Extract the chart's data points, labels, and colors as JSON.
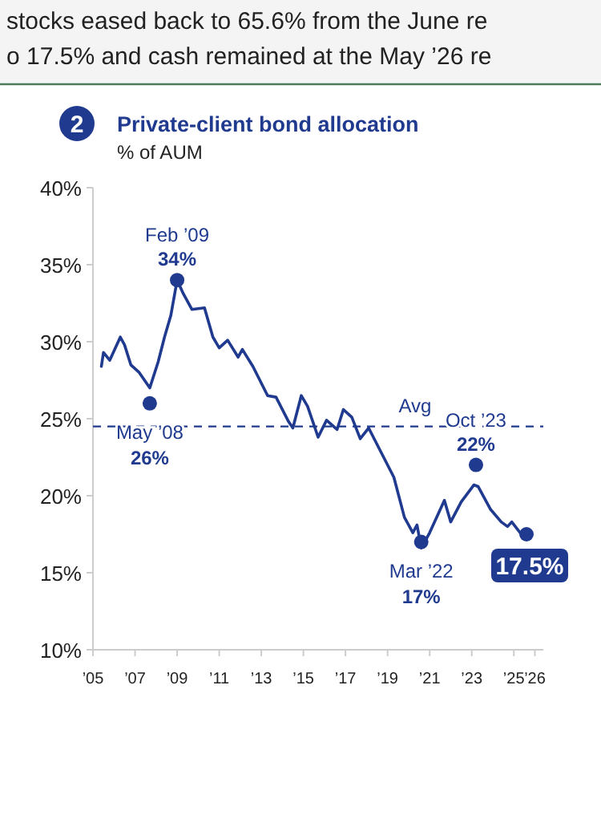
{
  "chart_data": {
    "type": "line",
    "title": "Private-client bond allocation",
    "subtitle": "% of AUM",
    "annotations": [
      "stocks eased back to 65.6% from the June re",
      "o 17.5% and cash remained at the May ’26 re",
      "2",
      {
        "text": "May ’08",
        "x": 2007.7,
        "y": 26
      },
      {
        "text": "Feb ’09",
        "x": 2009.0,
        "y": 34
      },
      {
        "text": "Mar ’22",
        "x": 2020.6,
        "y": 17
      },
      {
        "text": "Oct ’23",
        "x": 2023.2,
        "y": 22
      }
    ],
    "xlim": [
      2005,
      2026.4
    ],
    "xticks": [
      {
        "value": 2005,
        "label": "’05"
      },
      {
        "value": 2007,
        "label": "’07"
      },
      {
        "value": 2009,
        "label": "’09"
      },
      {
        "value": 2011,
        "label": "’11"
      },
      {
        "value": 2013,
        "label": "’13"
      },
      {
        "value": 2015,
        "label": "’15"
      },
      {
        "value": 2017,
        "label": "’17"
      },
      {
        "value": 2019,
        "label": "’19"
      },
      {
        "value": 2021,
        "label": "’21"
      },
      {
        "value": 2023,
        "label": "’23"
      },
      {
        "value": 2025,
        "label": "’25"
      },
      {
        "value": 2026,
        "label": "’26"
      }
    ],
    "ylim": [
      10,
      40
    ],
    "yticks": [
      {
        "value": 10,
        "label": "10%"
      },
      {
        "value": 15,
        "label": "15%"
      },
      {
        "value": 20,
        "label": "20%"
      },
      {
        "value": 25,
        "label": "25%"
      },
      {
        "value": 30,
        "label": "30%"
      },
      {
        "value": 35,
        "label": "35%"
      },
      {
        "value": 40,
        "label": "40%"
      }
    ],
    "ref_lines": [
      {
        "axis": "y",
        "value": 24.5,
        "label": "Avg",
        "color": "#1f3a8f",
        "line_style": "dashed"
      }
    ],
    "grid": false,
    "series": [
      {
        "color": "#1f3a8f",
        "x": [
          2005.4,
          2005.5,
          2005.8,
          2006.3,
          2006.5,
          2006.8,
          2007.2,
          2007.7,
          2008.1,
          2008.4,
          2008.7,
          2009.0,
          2009.3,
          2009.7,
          2010.3,
          2010.7,
          2011.0,
          2011.4,
          2011.9,
          2012.1,
          2012.6,
          2013.3,
          2013.7,
          2014.3,
          2014.5,
          2014.9,
          2015.2,
          2015.7,
          2016.1,
          2016.6,
          2016.9,
          2017.3,
          2017.7,
          2018.1,
          2018.7,
          2019.3,
          2019.8,
          2020.2,
          2020.4,
          2020.6,
          2021.0,
          2021.7,
          2022.0,
          2022.5,
          2023.1,
          2023.3,
          2023.9,
          2024.4,
          2024.7,
          2024.9,
          2025.3,
          2025.6
        ],
        "values": [
          28.4,
          29.3,
          28.8,
          30.3,
          29.8,
          28.5,
          28.0,
          27.0,
          28.7,
          30.3,
          31.7,
          34.0,
          33.1,
          32.1,
          32.2,
          30.3,
          29.6,
          30.1,
          29.0,
          29.5,
          28.4,
          26.5,
          26.4,
          24.8,
          24.4,
          26.5,
          25.8,
          23.8,
          24.9,
          24.3,
          25.6,
          25.1,
          23.7,
          24.4,
          22.8,
          21.2,
          18.6,
          17.6,
          18.1,
          16.6,
          17.6,
          19.7,
          18.3,
          19.6,
          20.7,
          20.6,
          19.1,
          18.3,
          18.0,
          18.3,
          17.6,
          17.3
        ]
      },
      {
        "type": "scatter",
        "color": "#1f3a8f",
        "marker": "circle",
        "x": [
          2007.7,
          2009.0,
          2020.6,
          2023.2,
          2025.6
        ],
        "values": [
          26,
          34,
          17,
          22,
          17.5
        ],
        "value_labels": [
          "26%",
          "34%",
          "17%",
          "22%",
          "17.5%"
        ]
      }
    ]
  }
}
